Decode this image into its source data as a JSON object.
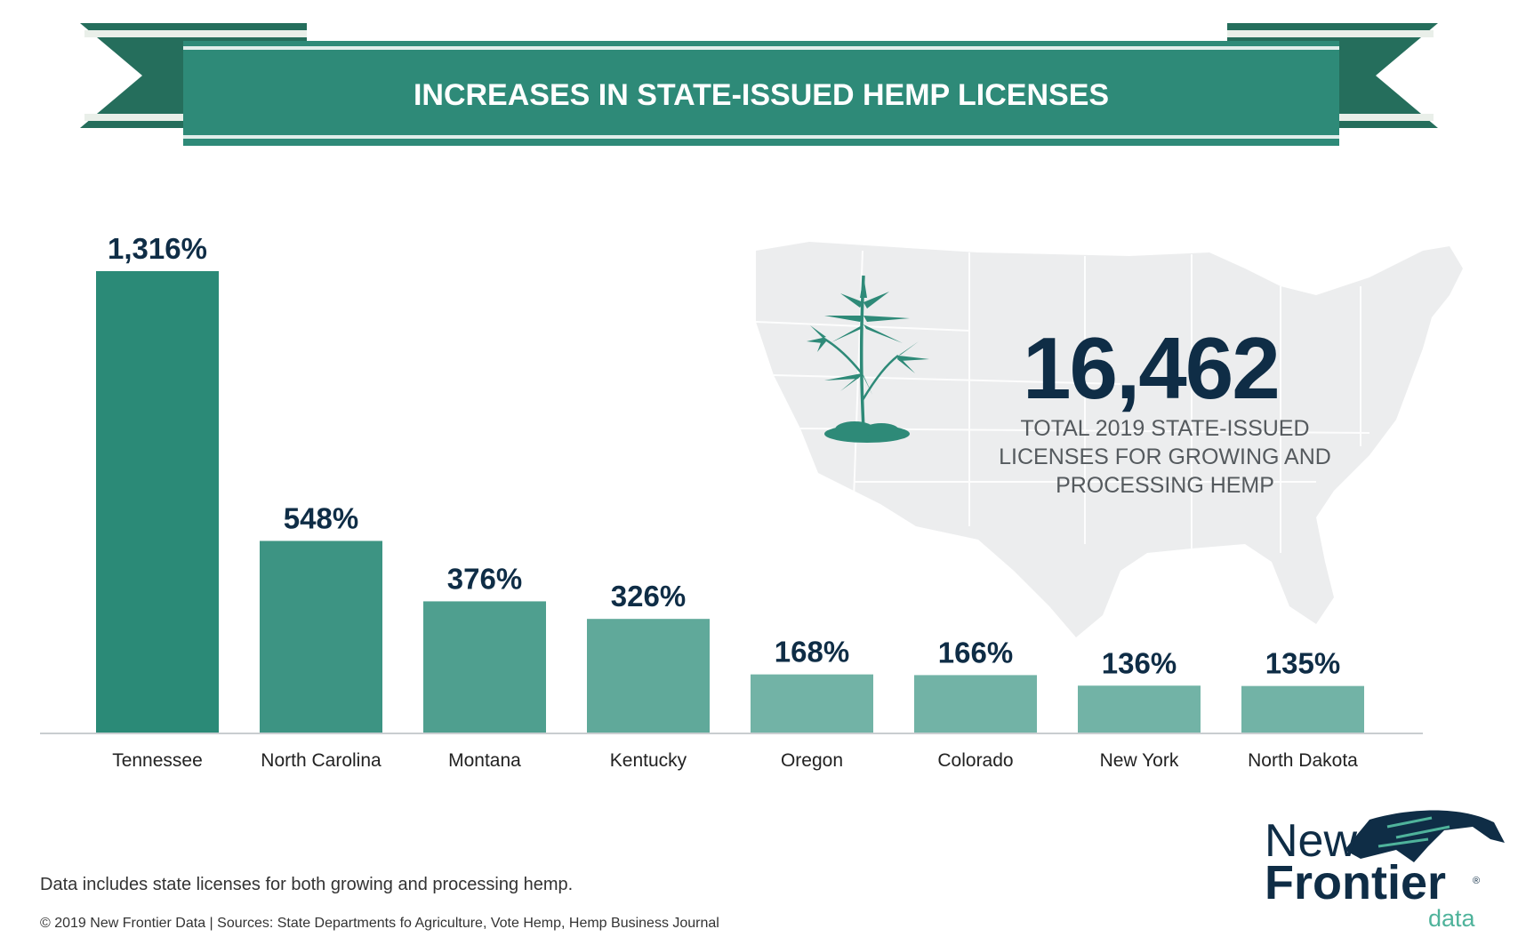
{
  "banner": {
    "title": "INCREASES IN STATE-ISSUED HEMP LICENSES"
  },
  "total": {
    "number": "16,462",
    "caption": [
      "TOTAL 2019 STATE-ISSUED",
      "LICENSES FOR GROWING AND",
      "PROCESSING HEMP"
    ]
  },
  "chart_data": {
    "type": "bar",
    "title": "INCREASES IN STATE-ISSUED HEMP LICENSES",
    "xlabel": "",
    "ylabel": "",
    "ylim": [
      0,
      1316
    ],
    "grid": false,
    "categories": [
      "Tennessee",
      "North Carolina",
      "Montana",
      "Kentucky",
      "Oregon",
      "Colorado",
      "New York",
      "North Dakota"
    ],
    "values": [
      1316,
      548,
      376,
      326,
      168,
      166,
      136,
      135
    ],
    "data_labels": [
      "1,316%",
      "548%",
      "376%",
      "326%",
      "168%",
      "166%",
      "136%",
      "135%"
    ]
  },
  "footer": {
    "note": "Data includes state licenses for both growing and processing hemp.",
    "credits": "© 2019  New Frontier Data | Sources: State Departments fo Agriculture, Vote Hemp, Hemp Business Journal"
  },
  "logo": {
    "line1": "New",
    "line2": "Frontier",
    "reg": "®",
    "line3": "data"
  },
  "colors": {
    "banner_dark": "#256e5c",
    "banner_main": "#2e8a78",
    "bar_dark": "#2b8a77",
    "bar_light": "#72b3a6",
    "navy": "#0f2d46",
    "map": "#ecedee"
  }
}
